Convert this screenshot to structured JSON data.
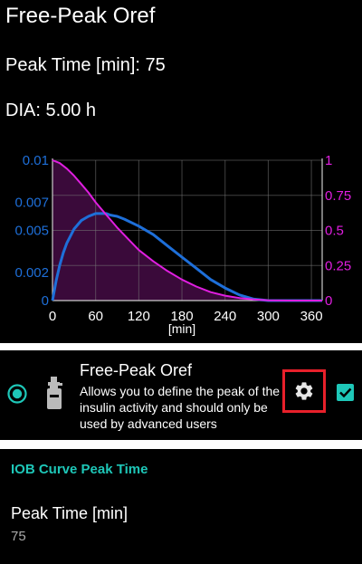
{
  "header": {
    "title": "Free-Peak Oref",
    "peak_time": "Peak Time [min]: 75",
    "dia": "DIA:  5.00 h"
  },
  "chart_data": {
    "type": "line",
    "x_unit_label": "[min]",
    "xlim": [
      0,
      375
    ],
    "x_ticks": [
      0,
      60,
      120,
      180,
      240,
      300,
      360
    ],
    "y_left_ticks": [
      "0",
      "0.002",
      "0.005",
      "0.007",
      "0.01"
    ],
    "y_left_lim": [
      0,
      0.01
    ],
    "y_right_ticks": [
      "0",
      "0.25",
      "0.5",
      "0.75",
      "1"
    ],
    "y_right_lim": [
      0,
      1
    ],
    "series": [
      {
        "axis": "left",
        "color": "#1e6fd9",
        "x": [
          0,
          5,
          10,
          15,
          20,
          30,
          40,
          50,
          60,
          70,
          75,
          80,
          90,
          100,
          120,
          140,
          160,
          180,
          200,
          220,
          240,
          260,
          280,
          300,
          330,
          375
        ],
        "y": [
          0,
          0.0014,
          0.0025,
          0.0034,
          0.0041,
          0.0051,
          0.0057,
          0.006,
          0.0062,
          0.0062,
          0.0062,
          0.0061,
          0.006,
          0.0058,
          0.0053,
          0.0047,
          0.0039,
          0.0031,
          0.0023,
          0.0015,
          0.0009,
          0.0004,
          0.0001,
          0,
          0,
          0
        ]
      },
      {
        "axis": "right",
        "color": "#e01ee0",
        "fill": "#3a0a3a",
        "x": [
          0,
          10,
          20,
          30,
          40,
          50,
          60,
          75,
          90,
          105,
          120,
          140,
          160,
          180,
          200,
          220,
          240,
          260,
          280,
          300,
          330,
          375
        ],
        "y": [
          1,
          0.98,
          0.94,
          0.89,
          0.83,
          0.77,
          0.7,
          0.61,
          0.52,
          0.44,
          0.36,
          0.28,
          0.21,
          0.15,
          0.1,
          0.06,
          0.035,
          0.018,
          0.008,
          0.002,
          0,
          0
        ]
      }
    ]
  },
  "plugin": {
    "title": "Free-Peak Oref",
    "description": "Allows you to define the peak of the insulin activity and should only be used by advanced users",
    "accent": "#1ec7b8",
    "highlight": "#e8202a"
  },
  "preferences": {
    "section_title": "IOB Curve Peak Time",
    "item_title": "Peak Time [min]",
    "item_value": "75"
  }
}
